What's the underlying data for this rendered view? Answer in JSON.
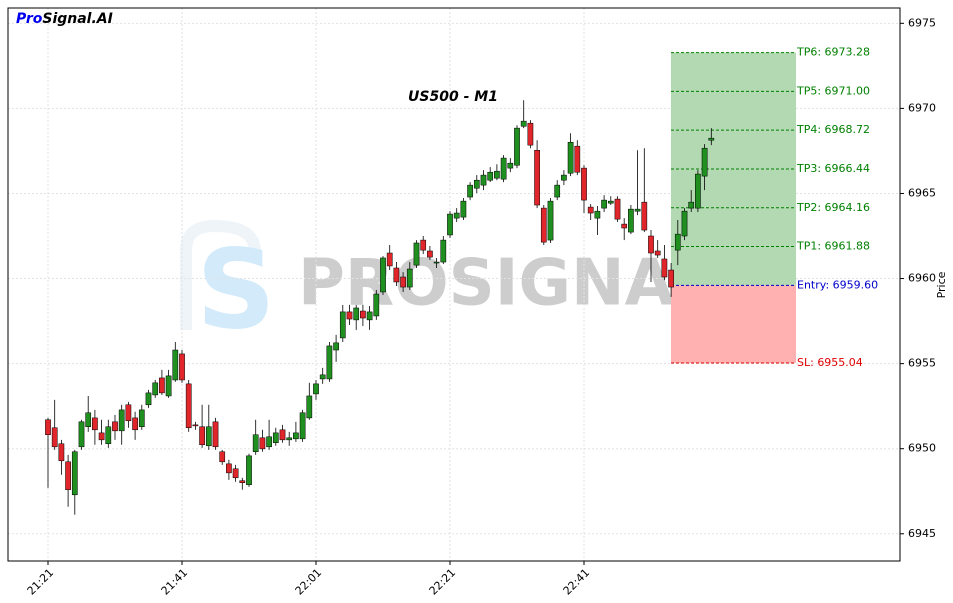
{
  "chart_data": {
    "type": "candlestick",
    "title": "US500 - M1",
    "ylabel": "Price",
    "logo": {
      "prefix": "Pro",
      "suffix": "Signal.AI"
    },
    "watermark": "PROSIGNAL",
    "up_color": "#1f8f1f",
    "down_color": "#e0262b",
    "grid": true,
    "ylim": [
      6943.4,
      6975.9
    ],
    "yticks": [
      6945,
      6950,
      6955,
      6960,
      6965,
      6970,
      6975
    ],
    "categories": [
      "21:21",
      null,
      null,
      null,
      null,
      null,
      null,
      null,
      null,
      null,
      null,
      null,
      null,
      null,
      null,
      null,
      null,
      null,
      null,
      null,
      "21:41",
      null,
      null,
      null,
      null,
      null,
      null,
      null,
      null,
      null,
      null,
      null,
      null,
      null,
      null,
      null,
      null,
      null,
      null,
      null,
      "22:01",
      null,
      null,
      null,
      null,
      null,
      null,
      null,
      null,
      null,
      null,
      null,
      null,
      null,
      null,
      null,
      null,
      null,
      null,
      null,
      "22:21",
      null,
      null,
      null,
      null,
      null,
      null,
      null,
      null,
      null,
      null,
      null,
      null,
      null,
      null,
      null,
      null,
      null,
      null,
      null,
      "22:41",
      null,
      null,
      null,
      null,
      null,
      null,
      null,
      null,
      null,
      null,
      null,
      null,
      null,
      null,
      null,
      null,
      null,
      null,
      null
    ],
    "open": [
      6951.7,
      6951.23,
      6950.29,
      6949.23,
      6947.29,
      6950.11,
      6951.29,
      6951.81,
      6950.93,
      6950.29,
      6951.58,
      6951.05,
      6952.58,
      6951.81,
      6951.29,
      6952.58,
      6953.16,
      6954.16,
      6953.1,
      6954.04,
      6955.57,
      6953.81,
      6951.4,
      6951.29,
      6950.17,
      6951.58,
      6949.82,
      6949.11,
      6948.82,
      6948.12,
      6947.88,
      6949.82,
      6950.64,
      6950.11,
      6950.35,
      6951.11,
      6950.52,
      6950.58,
      6950.58,
      6951.81,
      6953.22,
      6954.1,
      6954.1,
      6955.8,
      6956.51,
      6958.04,
      6957.57,
      6958.09,
      6957.57,
      6957.8,
      6959.21,
      6961.5,
      6960.62,
      6960.09,
      6959.5,
      6960.79,
      6962.26,
      6961.62,
      6960.91,
      6960.97,
      6962.56,
      6963.55,
      6963.61,
      6964.79,
      6965.31,
      6965.49,
      6965.78,
      6965.9,
      6965.84,
      6966.49,
      6966.66,
      6968.95,
      6969.13,
      6967.54,
      6964.14,
      6962.26,
      6964.79,
      6965.78,
      6966.19,
      6967.78,
      6966.49,
      6964.2,
      6963.55,
      6964.14,
      6964.43,
      6964.67,
      6963.2,
      6962.73,
      6963.96,
      6964.49,
      6962.5,
      6961.62,
      6961.15,
      6960.5,
      6961.67,
      6962.5,
      6964.14,
      6964.14,
      6966.02,
      6968.13
    ],
    "high": [
      6951.81,
      6952.87,
      6950.52,
      6949.64,
      6949.93,
      6951.7,
      6953.1,
      6952.28,
      6951.7,
      6951.7,
      6951.99,
      6952.58,
      6952.75,
      6952.17,
      6952.58,
      6953.46,
      6954.04,
      6954.63,
      6954.63,
      6956.27,
      6955.8,
      6954.04,
      6951.58,
      6952.58,
      6952.58,
      6951.81,
      6949.93,
      6949.35,
      6949.05,
      6948.29,
      6949.7,
      6951.7,
      6951.11,
      6951.7,
      6951.23,
      6951.4,
      6950.99,
      6951.58,
      6952.28,
      6953.87,
      6954.04,
      6954.75,
      6956.27,
      6956.69,
      6958.45,
      6958.45,
      6958.45,
      6958.45,
      6958.39,
      6959.33,
      6961.32,
      6961.97,
      6960.97,
      6960.38,
      6960.97,
      6962.26,
      6962.5,
      6961.91,
      6961.21,
      6962.5,
      6963.96,
      6964.14,
      6964.73,
      6965.67,
      6966.08,
      6966.37,
      6966.55,
      6966.72,
      6967.25,
      6967.08,
      6969.01,
      6970.48,
      6969.31,
      6968.13,
      6964.32,
      6964.73,
      6965.78,
      6966.37,
      6968.54,
      6968.13,
      6966.66,
      6964.38,
      6964.26,
      6964.9,
      6964.84,
      6964.84,
      6963.55,
      6964.32,
      6967.54,
      6967.66,
      6962.85,
      6962.26,
      6961.97,
      6960.91,
      6963.44,
      6964.14,
      6965.2,
      6966.37,
      6967.9,
      6968.84
    ],
    "low": [
      6947.7,
      6949.93,
      6948.47,
      6946.59,
      6946.12,
      6949.93,
      6950.99,
      6950.23,
      6950.23,
      6950.05,
      6950.52,
      6950.23,
      6951.23,
      6950.52,
      6951.11,
      6952.4,
      6952.99,
      6953.16,
      6952.99,
      6953.93,
      6953.87,
      6950.99,
      6951.11,
      6950.05,
      6949.93,
      6949.93,
      6949.05,
      6948.17,
      6948.06,
      6947.59,
      6947.76,
      6949.64,
      6949.82,
      6949.93,
      6950.17,
      6950.35,
      6950.17,
      6950.4,
      6950.4,
      6951.7,
      6952.87,
      6953.81,
      6953.93,
      6955.1,
      6956.27,
      6957.27,
      6956.98,
      6957.21,
      6956.98,
      6957.57,
      6959.03,
      6960.5,
      6959.56,
      6959.21,
      6959.33,
      6960.62,
      6961.44,
      6961.09,
      6960.62,
      6960.85,
      6962.38,
      6963.32,
      6963.44,
      6964.61,
      6965.02,
      6965.2,
      6965.67,
      6965.78,
      6965.67,
      6966.25,
      6966.49,
      6968.84,
      6967.66,
      6964.14,
      6961.97,
      6962.09,
      6964.61,
      6965.49,
      6966.02,
      6966.08,
      6963.85,
      6963.44,
      6962.56,
      6963.91,
      6964.32,
      6963.32,
      6962.26,
      6962.61,
      6963.73,
      6962.73,
      6959.8,
      6961.21,
      6959.91,
      6958.92,
      6960.79,
      6962.26,
      6963.91,
      6963.91,
      6965.2,
      6967.84
    ],
    "close": [
      6950.82,
      6950.11,
      6949.29,
      6947.59,
      6949.82,
      6951.58,
      6952.11,
      6951.11,
      6950.52,
      6951.29,
      6951.05,
      6952.28,
      6951.64,
      6951.11,
      6952.28,
      6953.28,
      6953.87,
      6953.28,
      6954.28,
      6955.8,
      6954.04,
      6951.23,
      6951.34,
      6950.23,
      6951.29,
      6950.11,
      6949.23,
      6948.58,
      6948.29,
      6948.0,
      6949.58,
      6950.82,
      6949.99,
      6950.7,
      6950.93,
      6950.52,
      6950.64,
      6950.93,
      6952.11,
      6953.1,
      6953.81,
      6954.34,
      6956.04,
      6956.22,
      6958.04,
      6957.62,
      6958.27,
      6957.68,
      6958.04,
      6959.09,
      6961.21,
      6960.74,
      6959.8,
      6959.5,
      6960.56,
      6962.09,
      6961.67,
      6961.26,
      6960.97,
      6962.26,
      6963.79,
      6963.85,
      6964.55,
      6965.49,
      6965.78,
      6966.08,
      6966.25,
      6966.31,
      6967.08,
      6966.78,
      6968.84,
      6969.25,
      6967.84,
      6964.32,
      6962.14,
      6964.55,
      6965.49,
      6966.08,
      6968.01,
      6966.25,
      6964.61,
      6963.85,
      6963.96,
      6964.61,
      6964.55,
      6963.49,
      6962.97,
      6964.08,
      6964.08,
      6962.85,
      6961.5,
      6961.38,
      6960.09,
      6959.5,
      6962.61,
      6963.96,
      6964.49,
      6966.14,
      6967.66,
      6968.25
    ],
    "take_profits": [
      {
        "label": "TP1: 6961.88",
        "value": 6961.88
      },
      {
        "label": "TP2: 6964.16",
        "value": 6964.16
      },
      {
        "label": "TP3: 6966.44",
        "value": 6966.44
      },
      {
        "label": "TP4: 6968.72",
        "value": 6968.72
      },
      {
        "label": "TP5: 6971.00",
        "value": 6971.0
      },
      {
        "label": "TP6: 6973.28",
        "value": 6973.28
      }
    ],
    "take_profit_color": "#008000",
    "entry": {
      "label": "Entry: 6959.60",
      "value": 6959.6,
      "color": "#0000cc"
    },
    "stop_loss": {
      "label": "SL: 6955.04",
      "value": 6955.04,
      "color": "#e00000"
    },
    "profit_zone_color": "#b2d9b2",
    "loss_zone_color": "#ffb0b0"
  }
}
